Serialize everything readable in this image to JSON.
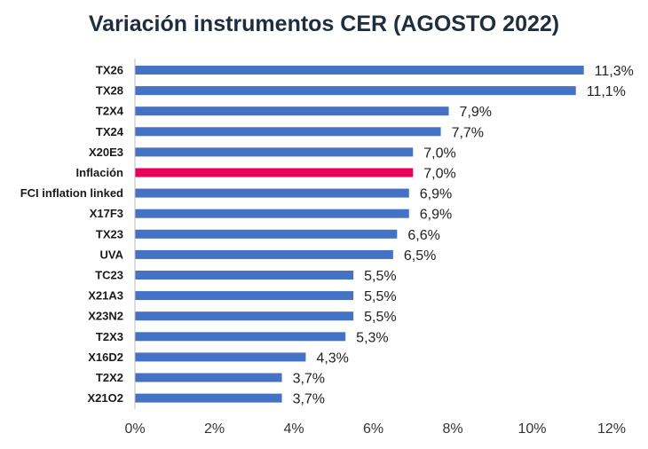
{
  "chart_data": {
    "type": "bar",
    "orientation": "horizontal",
    "title": "Variación instrumentos CER (AGOSTO 2022)",
    "xlabel": "",
    "ylabel": "",
    "xlim": [
      0,
      12
    ],
    "x_ticks": [
      0,
      2,
      4,
      6,
      8,
      10,
      12
    ],
    "x_tick_labels": [
      "0%",
      "2%",
      "4%",
      "6%",
      "8%",
      "10%",
      "12%"
    ],
    "grid": false,
    "legend": "none",
    "bar_color": "#4472C4",
    "highlight_color": "#E8005A",
    "highlight_category": "Inflación",
    "categories": [
      "TX26",
      "TX28",
      "T2X4",
      "TX24",
      "X20E3",
      "Inflación",
      "FCI inflation linked",
      "X17F3",
      "TX23",
      "UVA",
      "TC23",
      "X21A3",
      "X23N2",
      "T2X3",
      "X16D2",
      "T2X2",
      "X21O2"
    ],
    "values": [
      11.3,
      11.1,
      7.9,
      7.7,
      7.0,
      7.0,
      6.9,
      6.9,
      6.6,
      6.5,
      5.5,
      5.5,
      5.5,
      5.3,
      4.3,
      3.7,
      3.7
    ],
    "value_labels": [
      "11,3%",
      "11,1%",
      "7,9%",
      "7,7%",
      "7,0%",
      "7,0%",
      "6,9%",
      "6,9%",
      "6,6%",
      "6,5%",
      "5,5%",
      "5,5%",
      "5,5%",
      "5,3%",
      "4,3%",
      "3,7%",
      "3,7%"
    ]
  }
}
